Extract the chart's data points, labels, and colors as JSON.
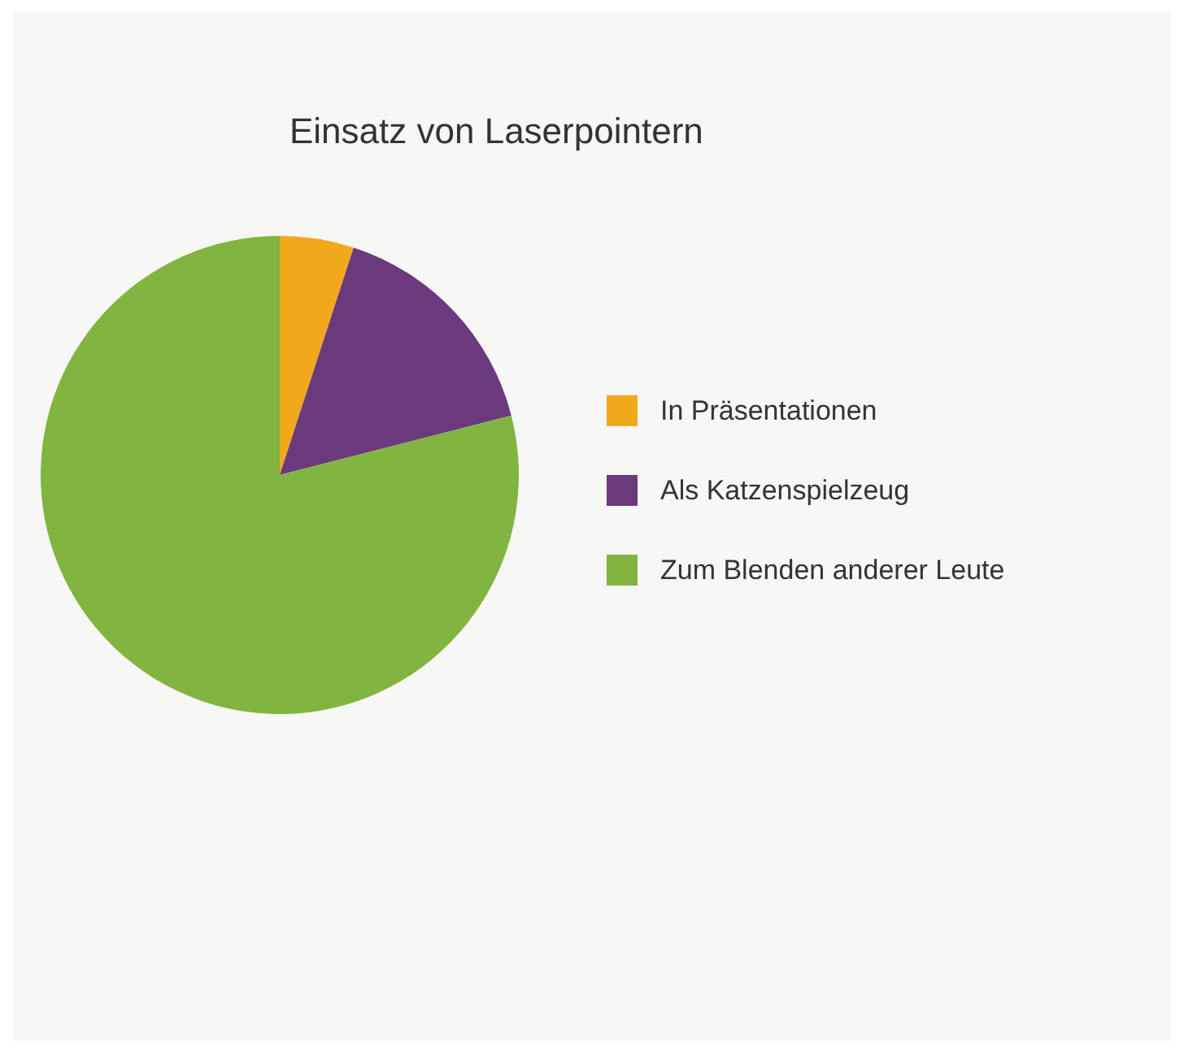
{
  "chart_data": {
    "type": "pie",
    "title": "Einsatz von Laserpointern",
    "categories": [
      "In Präsentationen",
      "Als Katzenspielzeug",
      "Zum Blenden anderer Leute"
    ],
    "values": [
      5,
      16,
      79
    ],
    "colors": [
      "#f2a81d",
      "#6b3a7d",
      "#82b440"
    ],
    "legend": "right"
  }
}
